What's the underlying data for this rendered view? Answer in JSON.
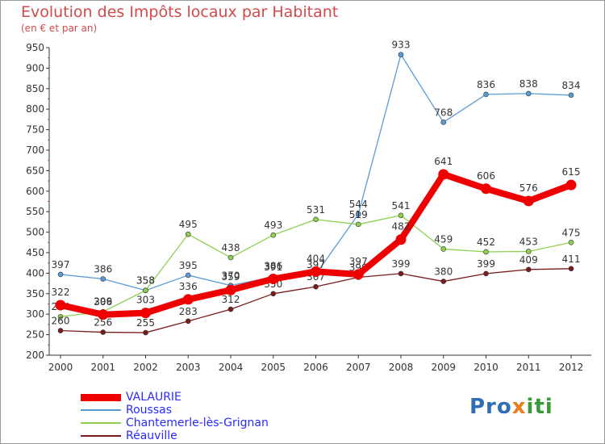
{
  "header": {
    "title": "Evolution des Impôts locaux par Habitant",
    "subtitle": "(en € et par an)"
  },
  "logo": {
    "text": "Proxiti"
  },
  "colors": {
    "VALAURIE": "#ee0000",
    "Roussas": "#5b9bd5",
    "Chantemerle": "#90d050",
    "Reauville": "#7a1c1c",
    "axis": "#333333",
    "grid": "#dddddd"
  },
  "chart_data": {
    "type": "line",
    "title": "Evolution des Impôts locaux par Habitant",
    "subtitle": "(en € et par an)",
    "x": [
      "2000",
      "2001",
      "2002",
      "2003",
      "2004",
      "2005",
      "2006",
      "2007",
      "2008",
      "2009",
      "2010",
      "2011",
      "2012"
    ],
    "ylim": [
      200,
      950
    ],
    "yticks": [
      200,
      250,
      300,
      350,
      400,
      450,
      500,
      550,
      600,
      650,
      700,
      750,
      800,
      850,
      900,
      950
    ],
    "grid": false,
    "legend_position": "bottom-left",
    "series": [
      {
        "name": "Roussas",
        "color": "#5b9bd5",
        "values": [
          397,
          386,
          358,
          395,
          370,
          391,
          397,
          544,
          933,
          768,
          836,
          838,
          834
        ],
        "labels": [
          "397",
          "386",
          "358",
          "395",
          "370",
          "391",
          "397",
          "544",
          "933",
          "768",
          "836",
          "838",
          "834"
        ]
      },
      {
        "name": "Chantemerle-lès-Grignan",
        "color": "#90d050",
        "values": [
          294,
          306,
          358,
          495,
          438,
          493,
          531,
          519,
          541,
          459,
          452,
          453,
          475
        ],
        "labels": [
          "294",
          "306",
          "358",
          "495",
          "438",
          "493",
          "531",
          "519",
          "541",
          "459",
          "452",
          "453",
          "475"
        ]
      },
      {
        "name": "Réauville",
        "color": "#7a1c1c",
        "values": [
          260,
          256,
          255,
          283,
          312,
          350,
          367,
          390,
          399,
          380,
          399,
          409,
          411
        ],
        "labels": [
          "260",
          "256",
          "255",
          "283",
          "312",
          "350",
          "367",
          "390",
          "399",
          "380",
          "399",
          "409",
          "411"
        ]
      },
      {
        "name": "VALAURIE",
        "color": "#ee0000",
        "values": [
          322,
          299,
          303,
          336,
          359,
          386,
          404,
          397,
          482,
          641,
          606,
          576,
          615
        ],
        "labels": [
          "322",
          "299",
          "303",
          "336",
          "359",
          "386",
          "404",
          "397",
          "482",
          "641",
          "606",
          "576",
          "615"
        ]
      }
    ]
  },
  "legend": [
    {
      "label": "VALAURIE"
    },
    {
      "label": "Roussas"
    },
    {
      "label": "Chantemerle-lès-Grignan"
    },
    {
      "label": "Réauville"
    }
  ]
}
